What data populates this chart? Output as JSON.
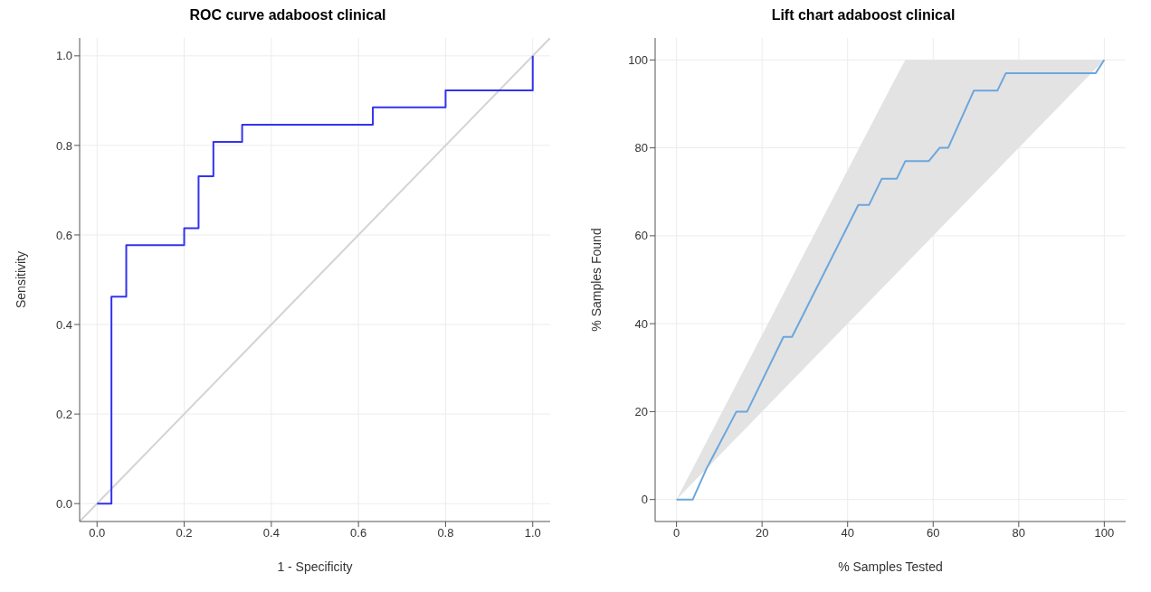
{
  "chart_data": [
    {
      "type": "line",
      "title": "ROC curve adaboost clinical",
      "xlabel": "1 - Specificity",
      "ylabel": "Sensitivity",
      "xlim": [
        -0.04,
        1.04
      ],
      "ylim": [
        -0.04,
        1.04
      ],
      "xticks": [
        {
          "value": 0,
          "label": "0.0"
        },
        0.2,
        0.4,
        0.6,
        0.8,
        {
          "value": 1,
          "label": "1.0"
        }
      ],
      "yticks": [
        {
          "value": 0,
          "label": "0.0"
        },
        0.2,
        0.4,
        0.6,
        0.8,
        {
          "value": 1,
          "label": "1.0"
        }
      ],
      "grid": true,
      "marker": "none",
      "line_style": "solid",
      "series": [
        {
          "color": "#d3d3d3",
          "x": [
            -0.04,
            1.04
          ],
          "values": [
            -0.04,
            1.04
          ]
        },
        {
          "color": "#3333ee",
          "x": [
            0,
            0.033,
            0.033,
            0.067,
            0.067,
            0.2,
            0.2,
            0.233,
            0.233,
            0.267,
            0.267,
            0.333,
            0.333,
            0.633,
            0.633,
            0.8,
            0.8,
            1,
            1
          ],
          "values": [
            0,
            0,
            0.462,
            0.462,
            0.577,
            0.577,
            0.615,
            0.615,
            0.731,
            0.731,
            0.808,
            0.808,
            0.846,
            0.846,
            0.885,
            0.885,
            0.923,
            0.923,
            1
          ]
        }
      ]
    },
    {
      "type": "line",
      "title": "Lift chart adaboost clinical",
      "xlabel": "% Samples Tested",
      "ylabel": "% Samples Found",
      "xlim": [
        -5,
        105
      ],
      "ylim": [
        -5,
        105
      ],
      "xticks": [
        0,
        20,
        40,
        60,
        80,
        100
      ],
      "yticks": [
        0,
        20,
        40,
        60,
        80,
        100
      ],
      "grid": true,
      "marker": "none",
      "line_style": "solid",
      "series": [
        {
          "color": "#6ca6dc",
          "x": [
            0,
            3.8,
            7,
            14,
            16.5,
            25,
            27,
            42.5,
            45,
            48,
            51.5,
            53.5,
            59,
            61.5,
            63.5,
            69.5,
            75,
            77,
            98,
            100
          ],
          "values": [
            0,
            0,
            7,
            20,
            20,
            37,
            37,
            67,
            67,
            73,
            73,
            77,
            77,
            80,
            80,
            93,
            93,
            97,
            97,
            100
          ],
          "lower": [
            0,
            3.8,
            7,
            14,
            16.5,
            25,
            27,
            42.5,
            45,
            48,
            51.5,
            53.5,
            59,
            61.5,
            63.5,
            69.5,
            75,
            77,
            98,
            100
          ],
          "upper": [
            0,
            7.1,
            13.1,
            26.2,
            30.9,
            46.8,
            50.6,
            79.6,
            84.3,
            89.9,
            96.4,
            100,
            100,
            100,
            100,
            100,
            100,
            100,
            100,
            100
          ]
        }
      ]
    }
  ]
}
